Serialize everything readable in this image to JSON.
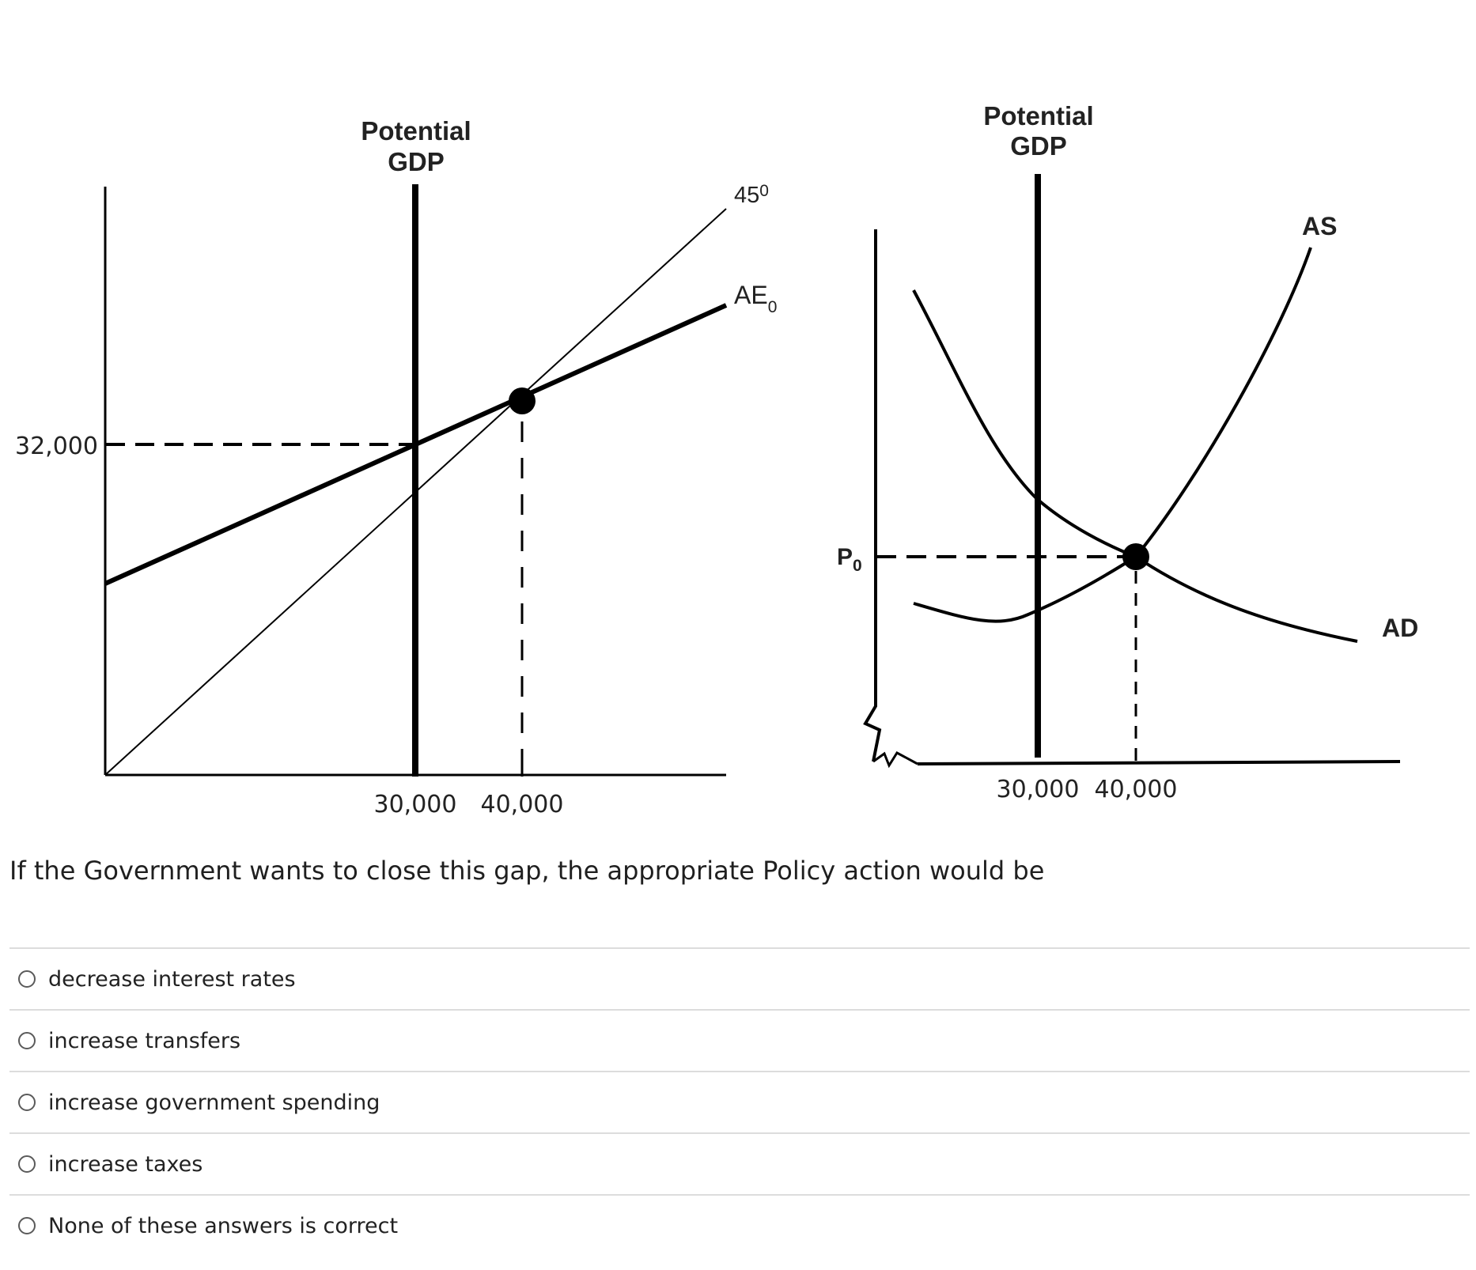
{
  "left_chart": {
    "potential_line_1": "Potential",
    "potential_line_2": "GDP",
    "forty_five_label": "45",
    "forty_five_superscript": "0",
    "ae_label": "AE",
    "ae_subscript": "0",
    "y_value_label": "32,000",
    "x_label_potential": "30,000",
    "x_label_equilibrium": "40,000"
  },
  "right_chart": {
    "potential_line_1": "Potential",
    "potential_line_2": "GDP",
    "as_label": "AS",
    "ad_label": "AD",
    "price_label": "P",
    "price_subscript": "0",
    "x_label_potential": "30,000",
    "x_label_equilibrium": "40,000"
  },
  "question": "If the Government wants to close this gap, the appropriate Policy action would be",
  "options": [
    "decrease interest rates",
    "increase transfers",
    "increase government spending",
    "increase taxes",
    "None of these answers is correct"
  ]
}
